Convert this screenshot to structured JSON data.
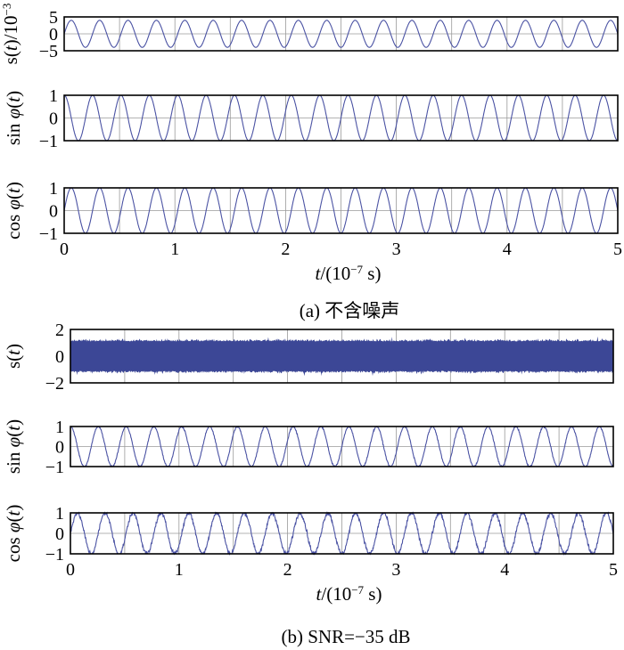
{
  "figure": {
    "caption_a": "(a) 不含噪声",
    "caption_b": "(b) SNR=−35 dB"
  },
  "chart_data": [
    {
      "type": "line",
      "panel": "a1",
      "ylabel_main": "s(t)",
      "ylabel_unit": "/10",
      "ylabel_exp": "−3",
      "xlim": [
        0,
        5
      ],
      "ylim": [
        -5,
        5
      ],
      "yticks": [
        5,
        0,
        -5
      ],
      "yticklabels": [
        "5",
        "0",
        "−5"
      ],
      "xticks": [
        0,
        0.5,
        1,
        1.5,
        2,
        2.5,
        3,
        3.5,
        4,
        4.5,
        5
      ],
      "show_xticklabels": false,
      "series": [
        {
          "kind": "sine",
          "amplitude": 4,
          "cycles": 19.5,
          "phase": "sin",
          "noise": 0,
          "color": "#4a52a3"
        }
      ],
      "grid": true
    },
    {
      "type": "line",
      "panel": "a2",
      "ylabel_main": "sin φ(t)",
      "xlim": [
        0,
        5
      ],
      "ylim": [
        -1,
        1
      ],
      "yticks": [
        1,
        0,
        -1
      ],
      "yticklabels": [
        "1",
        "0",
        "−1"
      ],
      "xticks": [
        0,
        0.5,
        1,
        1.5,
        2,
        2.5,
        3,
        3.5,
        4,
        4.5,
        5
      ],
      "show_xticklabels": false,
      "series": [
        {
          "kind": "sine",
          "amplitude": 1,
          "cycles": 19.5,
          "phase": "cos",
          "noise": 0,
          "color": "#4a52a3"
        }
      ],
      "grid": true
    },
    {
      "type": "line",
      "panel": "a3",
      "ylabel_main": "cos φ(t)",
      "xlim": [
        0,
        5
      ],
      "ylim": [
        -1,
        1
      ],
      "yticks": [
        1,
        0,
        -1
      ],
      "yticklabels": [
        "1",
        "0",
        "−1"
      ],
      "xticks": [
        0,
        0.5,
        1,
        1.5,
        2,
        2.5,
        3,
        3.5,
        4,
        4.5,
        5
      ],
      "xticklabels": [
        "0",
        "1",
        "2",
        "3",
        "4",
        "5"
      ],
      "show_xticklabels": true,
      "xlabel_t": "t",
      "xlabel_open": "/(10",
      "xlabel_exp": "−7",
      "xlabel_close": " s)",
      "series": [
        {
          "kind": "sine",
          "amplitude": 1,
          "cycles": 19.5,
          "phase": "sin",
          "noise": 0,
          "color": "#4a52a3"
        }
      ],
      "grid": true
    },
    {
      "type": "area",
      "panel": "b1",
      "ylabel_main": "s(t)",
      "xlim": [
        0,
        5
      ],
      "ylim": [
        -2,
        2
      ],
      "yticks": [
        2,
        0,
        -2
      ],
      "yticklabels": [
        "2",
        "0",
        "−2"
      ],
      "xticks": [
        0,
        0.5,
        1,
        1.5,
        2,
        2.5,
        3,
        3.5,
        4,
        4.5,
        5
      ],
      "show_xticklabels": false,
      "series": [
        {
          "kind": "noise-band",
          "amplitude": 1.1,
          "peak": 1.5,
          "color": "#3c4796"
        }
      ],
      "grid": true
    },
    {
      "type": "line",
      "panel": "b2",
      "ylabel_main": "sin φ(t)",
      "xlim": [
        0,
        5
      ],
      "ylim": [
        -1,
        1
      ],
      "yticks": [
        1,
        0,
        -1
      ],
      "yticklabels": [
        "1",
        "0",
        "−1"
      ],
      "xticks": [
        0,
        0.5,
        1,
        1.5,
        2,
        2.5,
        3,
        3.5,
        4,
        4.5,
        5
      ],
      "show_xticklabels": false,
      "series": [
        {
          "kind": "sine",
          "amplitude": 1,
          "cycles": 19.5,
          "phase": "cos",
          "noise": 0.04,
          "color": "#4a52a3"
        }
      ],
      "grid": true
    },
    {
      "type": "line",
      "panel": "b3",
      "ylabel_main": "cos φ(t)",
      "xlim": [
        0,
        5
      ],
      "ylim": [
        -1,
        1
      ],
      "yticks": [
        1,
        0,
        -1
      ],
      "yticklabels": [
        "1",
        "0",
        "−1"
      ],
      "xticks": [
        0,
        0.5,
        1,
        1.5,
        2,
        2.5,
        3,
        3.5,
        4,
        4.5,
        5
      ],
      "xticklabels": [
        "0",
        "1",
        "2",
        "3",
        "4",
        "5"
      ],
      "show_xticklabels": true,
      "xlabel_t": "t",
      "xlabel_open": "/(10",
      "xlabel_exp": "−7",
      "xlabel_close": " s)",
      "series": [
        {
          "kind": "sine",
          "amplitude": 1,
          "cycles": 19.5,
          "phase": "sin",
          "noise": 0.1,
          "color": "#4a52a3"
        }
      ],
      "grid": true
    }
  ]
}
